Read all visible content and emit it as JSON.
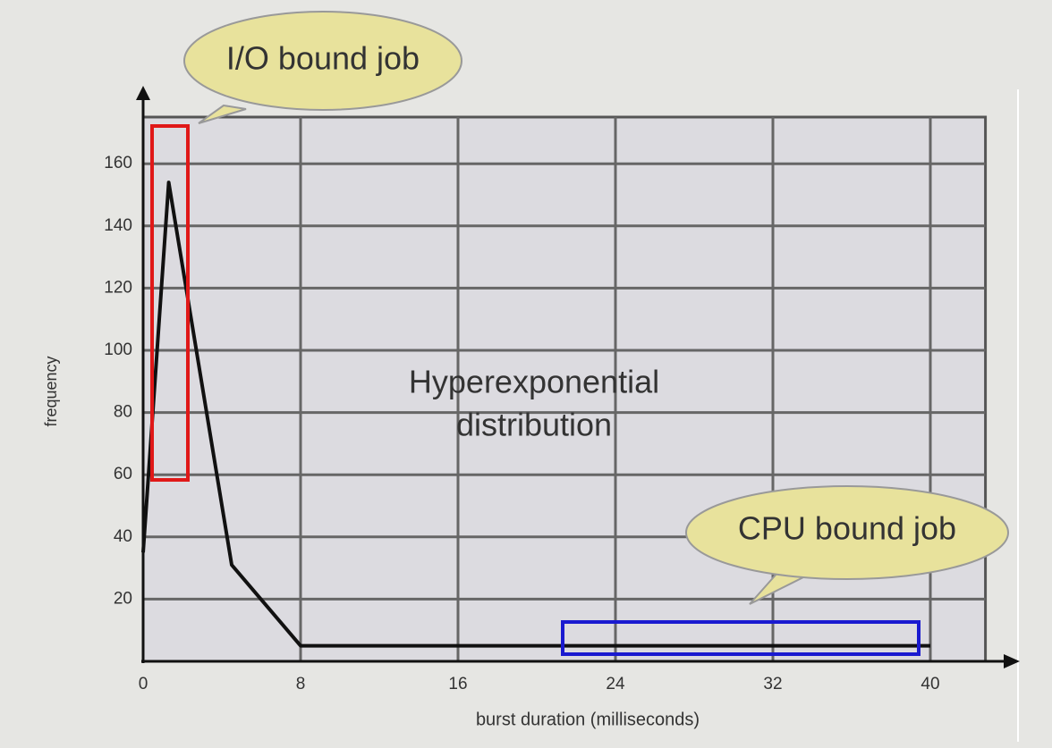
{
  "chart_data": {
    "type": "line",
    "xlabel": "burst duration (milliseconds)",
    "ylabel": "frequency",
    "x": [
      0,
      1.3,
      4.5,
      8,
      40
    ],
    "values": [
      35,
      154,
      31,
      5,
      5
    ],
    "color": "#111111",
    "xlim": [
      0,
      42.8
    ],
    "xticks": [
      0,
      8,
      16,
      24,
      32,
      40
    ],
    "ylim": [
      0,
      175
    ],
    "yticks": [
      20,
      40,
      60,
      80,
      100,
      120,
      140,
      160
    ],
    "grid": true,
    "annotations": [
      {
        "text": "I/O bound job",
        "color": "#d01c1c"
      },
      {
        "text": "Hyperexponential",
        "color": "#222222"
      },
      {
        "text": "distribution",
        "color": "#222222"
      },
      {
        "text": "CPU bound job",
        "color": "#1c1ca8"
      }
    ]
  }
}
